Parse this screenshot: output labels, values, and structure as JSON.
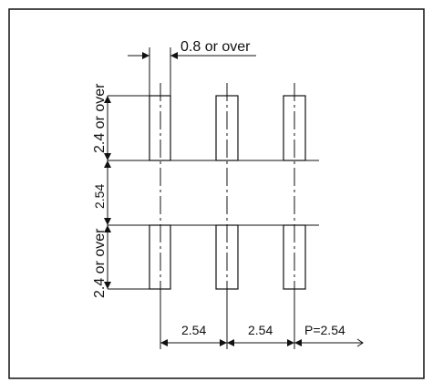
{
  "diagram": {
    "label_top_width": "0.8 or over",
    "label_top_pad_height": "2.4 or over",
    "label_gap": "2.54",
    "label_bottom_pad_height": "2.4 or over",
    "label_pitch_1": "2.54",
    "label_pitch_2": "2.54",
    "label_pitch_3": "P=2.54",
    "colors": {
      "line": "#111111",
      "background": "#ffffff"
    }
  }
}
